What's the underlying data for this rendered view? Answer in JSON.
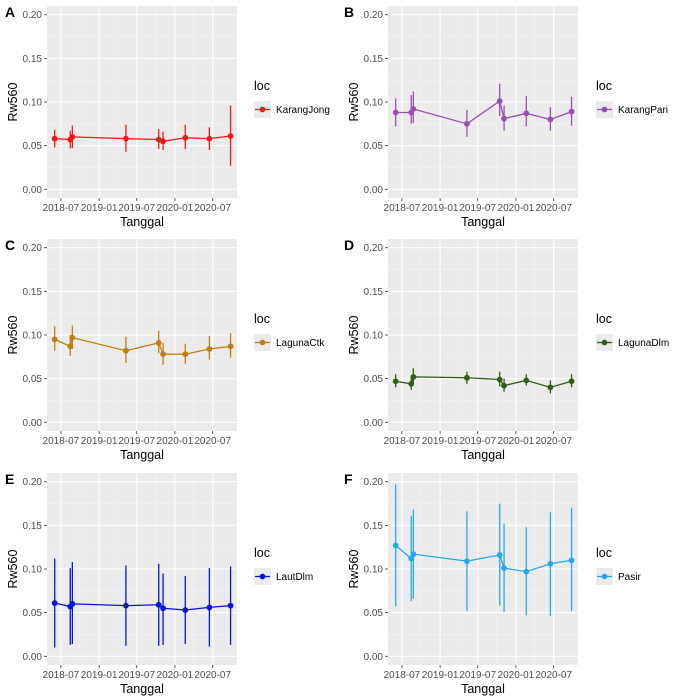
{
  "chart_data": [
    {
      "panel_label": "A",
      "type": "line",
      "x": [
        "2018-06-01",
        "2018-08-15",
        "2018-08-25",
        "2019-05-10",
        "2019-10-15",
        "2019-11-05",
        "2020-02-20",
        "2020-06-15",
        "2020-09-25"
      ],
      "y": [
        0.058,
        0.057,
        0.06,
        0.058,
        0.057,
        0.055,
        0.059,
        0.058,
        0.061
      ],
      "ymin": [
        0.048,
        0.047,
        0.047,
        0.043,
        0.046,
        0.045,
        0.046,
        0.045,
        0.027
      ],
      "ymax": [
        0.068,
        0.067,
        0.073,
        0.074,
        0.069,
        0.066,
        0.074,
        0.071,
        0.096
      ],
      "color": "#f8151a",
      "legend_title": "loc",
      "legend_entry": "KarangJong",
      "xlabel": "Tanggal",
      "ylabel": "Rw560",
      "ylim": [
        0.0,
        0.2
      ],
      "xtick_labels": [
        "2018-07",
        "2019-01",
        "2019-07",
        "2020-01",
        "2020-07"
      ],
      "ytick_labels": [
        "0.00",
        "0.05",
        "0.10",
        "0.15",
        "0.20"
      ]
    },
    {
      "panel_label": "B",
      "type": "line",
      "x": [
        "2018-06-01",
        "2018-08-15",
        "2018-08-25",
        "2019-05-10",
        "2019-10-15",
        "2019-11-05",
        "2020-02-20",
        "2020-06-15",
        "2020-09-25"
      ],
      "y": [
        0.088,
        0.088,
        0.092,
        0.075,
        0.101,
        0.081,
        0.087,
        0.08,
        0.089
      ],
      "ymin": [
        0.072,
        0.075,
        0.076,
        0.06,
        0.084,
        0.067,
        0.072,
        0.067,
        0.073
      ],
      "ymax": [
        0.104,
        0.108,
        0.112,
        0.091,
        0.121,
        0.096,
        0.107,
        0.094,
        0.106
      ],
      "color": "#9b4fb0",
      "legend_title": "loc",
      "legend_entry": "KarangPari",
      "xlabel": "Tanggal",
      "ylabel": "Rw560",
      "ylim": [
        0.0,
        0.2
      ],
      "xtick_labels": [
        "2018-07",
        "2019-01",
        "2019-07",
        "2020-01",
        "2020-07"
      ],
      "ytick_labels": [
        "0.00",
        "0.05",
        "0.10",
        "0.15",
        "0.20"
      ]
    },
    {
      "panel_label": "C",
      "type": "line",
      "x": [
        "2018-06-01",
        "2018-08-15",
        "2018-08-25",
        "2019-05-10",
        "2019-10-15",
        "2019-11-05",
        "2020-02-20",
        "2020-06-15",
        "2020-09-25"
      ],
      "y": [
        0.095,
        0.087,
        0.097,
        0.082,
        0.091,
        0.078,
        0.078,
        0.084,
        0.087
      ],
      "ymin": [
        0.082,
        0.076,
        0.084,
        0.068,
        0.079,
        0.066,
        0.067,
        0.072,
        0.074
      ],
      "ymax": [
        0.11,
        0.1,
        0.111,
        0.098,
        0.105,
        0.091,
        0.09,
        0.099,
        0.102
      ],
      "color": "#c07f10",
      "legend_title": "loc",
      "legend_entry": "LagunaCtk",
      "xlabel": "Tanggal",
      "ylabel": "Rw560",
      "ylim": [
        0.0,
        0.2
      ],
      "xtick_labels": [
        "2018-07",
        "2019-01",
        "2019-07",
        "2020-01",
        "2020-07"
      ],
      "ytick_labels": [
        "0.00",
        "0.05",
        "0.10",
        "0.15",
        "0.20"
      ]
    },
    {
      "panel_label": "D",
      "type": "line",
      "x": [
        "2018-06-01",
        "2018-08-15",
        "2018-08-25",
        "2019-05-10",
        "2019-10-15",
        "2019-11-05",
        "2020-02-20",
        "2020-06-15",
        "2020-09-25"
      ],
      "y": [
        0.047,
        0.044,
        0.052,
        0.051,
        0.049,
        0.042,
        0.048,
        0.04,
        0.047
      ],
      "ymin": [
        0.04,
        0.037,
        0.043,
        0.044,
        0.041,
        0.035,
        0.042,
        0.033,
        0.04
      ],
      "ymax": [
        0.055,
        0.052,
        0.062,
        0.058,
        0.058,
        0.05,
        0.055,
        0.048,
        0.055
      ],
      "color": "#2e5e15",
      "legend_title": "loc",
      "legend_entry": "LagunaDlm",
      "xlabel": "Tanggal",
      "ylabel": "Rw560",
      "ylim": [
        0.0,
        0.2
      ],
      "xtick_labels": [
        "2018-07",
        "2019-01",
        "2019-07",
        "2020-01",
        "2020-07"
      ],
      "ytick_labels": [
        "0.00",
        "0.05",
        "0.10",
        "0.15",
        "0.20"
      ]
    },
    {
      "panel_label": "E",
      "type": "line",
      "x": [
        "2018-06-01",
        "2018-08-15",
        "2018-08-25",
        "2019-05-10",
        "2019-10-15",
        "2019-11-05",
        "2020-02-20",
        "2020-06-15",
        "2020-09-25"
      ],
      "y": [
        0.061,
        0.057,
        0.06,
        0.058,
        0.059,
        0.055,
        0.053,
        0.056,
        0.058
      ],
      "ymin": [
        0.01,
        0.013,
        0.014,
        0.012,
        0.012,
        0.013,
        0.014,
        0.011,
        0.013
      ],
      "ymax": [
        0.112,
        0.101,
        0.108,
        0.104,
        0.106,
        0.095,
        0.092,
        0.101,
        0.103
      ],
      "color": "#0b12e0",
      "legend_title": "loc",
      "legend_entry": "LautDlm",
      "xlabel": "Tanggal",
      "ylabel": "Rw560",
      "ylim": [
        0.0,
        0.2
      ],
      "xtick_labels": [
        "2018-07",
        "2019-01",
        "2019-07",
        "2020-01",
        "2020-07"
      ],
      "ytick_labels": [
        "0.00",
        "0.05",
        "0.10",
        "0.15",
        "0.20"
      ]
    },
    {
      "panel_label": "F",
      "type": "line",
      "x": [
        "2018-06-01",
        "2018-08-15",
        "2018-08-25",
        "2019-05-10",
        "2019-10-15",
        "2019-11-05",
        "2020-02-20",
        "2020-06-15",
        "2020-09-25"
      ],
      "y": [
        0.127,
        0.112,
        0.117,
        0.109,
        0.116,
        0.101,
        0.097,
        0.106,
        0.11
      ],
      "ymin": [
        0.057,
        0.063,
        0.066,
        0.052,
        0.058,
        0.051,
        0.047,
        0.046,
        0.052
      ],
      "ymax": [
        0.197,
        0.161,
        0.168,
        0.166,
        0.175,
        0.152,
        0.148,
        0.165,
        0.17
      ],
      "color": "#25a9ee",
      "legend_title": "loc",
      "legend_entry": "Pasir",
      "xlabel": "Tanggal",
      "ylabel": "Rw560",
      "ylim": [
        0.0,
        0.2
      ],
      "xtick_labels": [
        "2018-07",
        "2019-01",
        "2019-07",
        "2020-01",
        "2020-07"
      ],
      "ytick_labels": [
        "0.00",
        "0.05",
        "0.10",
        "0.15",
        "0.20"
      ]
    }
  ]
}
